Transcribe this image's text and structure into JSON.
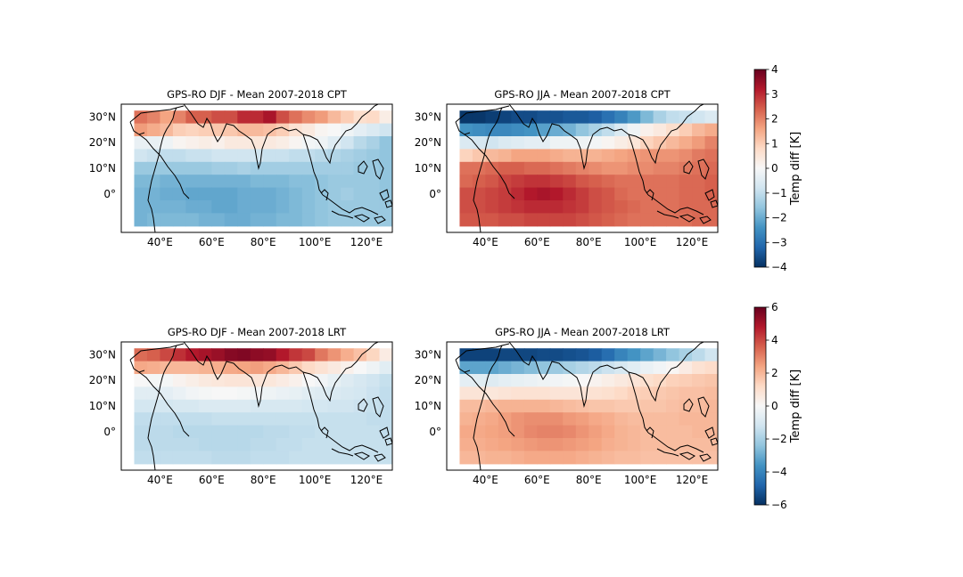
{
  "chart_data": [
    {
      "type": "heatmap",
      "title": "GPS-RO DJF - Mean 2007-2018 CPT",
      "x_ticks": [
        "40°E",
        "60°E",
        "80°E",
        "100°E",
        "120°E"
      ],
      "y_ticks": [
        "30°N",
        "20°N",
        "10°N",
        "0°"
      ],
      "x_range_deg_e": [
        25,
        130
      ],
      "y_range_deg_n": [
        -15,
        35
      ],
      "grid": {
        "lon_start": 30,
        "lon_step": 5,
        "lat_rows_north_to_south": [
          30,
          25,
          20,
          15,
          10,
          5,
          0,
          -5,
          -10
        ],
        "lat_step": 5
      },
      "colorbar": "shared-cpt",
      "values": [
        [
          2.2,
          2.0,
          1.6,
          2.0,
          2.4,
          2.4,
          2.6,
          2.6,
          3.0,
          3.0,
          3.3,
          2.6,
          2.2,
          1.9,
          1.7,
          1.3,
          1.0,
          0.7,
          0.8,
          0.3
        ],
        [
          1.7,
          1.5,
          1.3,
          1.0,
          0.9,
          1.0,
          1.1,
          1.1,
          1.3,
          1.3,
          1.2,
          1.0,
          0.6,
          0.4,
          0.1,
          0.0,
          -0.2,
          -0.4,
          -0.6,
          -0.8
        ],
        [
          -0.3,
          -0.3,
          -0.2,
          0.1,
          0.2,
          0.3,
          0.2,
          0.4,
          0.4,
          0.5,
          0.4,
          0.3,
          0.1,
          -0.1,
          -0.2,
          -0.5,
          -0.8,
          -1.1,
          -1.3,
          -1.6
        ],
        [
          -0.8,
          -0.9,
          -1.0,
          -1.0,
          -0.9,
          -0.9,
          -0.8,
          -0.8,
          -0.8,
          -0.8,
          -0.9,
          -0.9,
          -1.0,
          -1.0,
          -1.1,
          -1.2,
          -1.3,
          -1.4,
          -1.5,
          -1.6
        ],
        [
          -1.5,
          -1.5,
          -1.5,
          -1.5,
          -1.5,
          -1.5,
          -1.4,
          -1.4,
          -1.3,
          -1.4,
          -1.4,
          -1.4,
          -1.4,
          -1.4,
          -1.4,
          -1.4,
          -1.4,
          -1.5,
          -1.5,
          -1.6
        ],
        [
          -1.8,
          -1.8,
          -1.9,
          -1.9,
          -1.9,
          -1.9,
          -1.9,
          -1.9,
          -1.9,
          -1.8,
          -1.8,
          -1.8,
          -1.7,
          -1.7,
          -1.6,
          -1.5,
          -1.5,
          -1.5,
          -1.5,
          -1.6
        ],
        [
          -1.9,
          -1.9,
          -2.0,
          -2.0,
          -2.1,
          -2.1,
          -2.1,
          -2.1,
          -2.0,
          -2.0,
          -2.0,
          -1.9,
          -1.8,
          -1.7,
          -1.6,
          -1.5,
          -1.4,
          -1.5,
          -1.5,
          -1.6
        ],
        [
          -1.9,
          -1.9,
          -1.9,
          -1.9,
          -2.0,
          -2.0,
          -2.1,
          -2.1,
          -2.0,
          -2.0,
          -2.0,
          -1.9,
          -1.8,
          -1.7,
          -1.6,
          -1.5,
          -1.5,
          -1.5,
          -1.5,
          -1.5
        ],
        [
          -1.9,
          -1.8,
          -1.8,
          -1.8,
          -1.8,
          -1.9,
          -1.9,
          -2.0,
          -2.0,
          -1.9,
          -1.9,
          -1.8,
          -1.8,
          -1.7,
          -1.6,
          -1.5,
          -1.5,
          -1.5,
          -1.5,
          -1.5
        ]
      ]
    },
    {
      "type": "heatmap",
      "title": "GPS-RO JJA - Mean 2007-2018 CPT",
      "x_ticks": [
        "40°E",
        "60°E",
        "80°E",
        "100°E",
        "120°E"
      ],
      "y_ticks": [
        "30°N",
        "20°N",
        "10°N",
        "0°"
      ],
      "x_range_deg_e": [
        25,
        130
      ],
      "y_range_deg_n": [
        -15,
        35
      ],
      "grid": {
        "lon_start": 30,
        "lon_step": 5,
        "lat_rows_north_to_south": [
          30,
          25,
          20,
          15,
          10,
          5,
          0,
          -5,
          -10
        ],
        "lat_step": 5
      },
      "colorbar": "shared-cpt",
      "values": [
        [
          -3.9,
          -3.9,
          -3.8,
          -3.7,
          -3.6,
          -3.6,
          -3.5,
          -3.5,
          -3.4,
          -3.4,
          -3.3,
          -3.0,
          -2.7,
          -2.3,
          -1.8,
          -1.3,
          -1.0,
          -0.9,
          -0.8,
          -0.6
        ],
        [
          -2.4,
          -2.5,
          -2.6,
          -2.6,
          -2.5,
          -2.4,
          -2.2,
          -2.0,
          -1.9,
          -1.6,
          -1.3,
          -1.0,
          -0.6,
          -0.2,
          0.2,
          0.4,
          0.7,
          1.0,
          1.3,
          1.5
        ],
        [
          -0.6,
          -0.7,
          -0.8,
          -0.6,
          -0.5,
          -0.4,
          -0.4,
          -0.2,
          -0.2,
          -0.2,
          -0.1,
          0.1,
          0.3,
          0.5,
          0.9,
          1.1,
          1.3,
          1.5,
          1.7,
          2.0
        ],
        [
          0.9,
          1.1,
          1.3,
          1.4,
          1.6,
          1.6,
          1.6,
          1.5,
          1.4,
          1.4,
          1.4,
          1.5,
          1.6,
          1.7,
          1.8,
          1.8,
          1.8,
          1.9,
          2.1,
          2.2
        ],
        [
          2.2,
          2.2,
          2.3,
          2.4,
          2.4,
          2.3,
          2.3,
          2.2,
          2.1,
          2.0,
          1.9,
          1.8,
          1.8,
          1.9,
          1.9,
          2.0,
          2.0,
          2.1,
          2.2,
          2.3
        ],
        [
          2.3,
          2.4,
          2.5,
          2.7,
          2.8,
          2.9,
          2.9,
          2.8,
          2.7,
          2.5,
          2.4,
          2.3,
          2.2,
          2.2,
          2.2,
          2.2,
          2.2,
          2.3,
          2.3,
          2.4
        ],
        [
          2.6,
          2.6,
          2.7,
          2.8,
          3.0,
          3.2,
          3.3,
          3.2,
          3.0,
          2.8,
          2.6,
          2.5,
          2.3,
          2.2,
          2.2,
          2.2,
          2.2,
          2.3,
          2.3,
          2.4
        ],
        [
          2.6,
          2.6,
          2.7,
          2.8,
          2.9,
          3.0,
          3.0,
          3.0,
          2.9,
          2.8,
          2.6,
          2.5,
          2.4,
          2.3,
          2.2,
          2.2,
          2.2,
          2.3,
          2.3,
          2.3
        ],
        [
          2.5,
          2.5,
          2.5,
          2.6,
          2.6,
          2.7,
          2.7,
          2.7,
          2.7,
          2.6,
          2.5,
          2.4,
          2.3,
          2.2,
          2.2,
          2.2,
          2.2,
          2.2,
          2.3,
          2.3
        ]
      ]
    },
    {
      "type": "heatmap",
      "title": "GPS-RO DJF - Mean 2007-2018 LRT",
      "x_ticks": [
        "40°E",
        "60°E",
        "80°E",
        "100°E",
        "120°E"
      ],
      "y_ticks": [
        "30°N",
        "20°N",
        "10°N",
        "0°"
      ],
      "x_range_deg_e": [
        25,
        130
      ],
      "y_range_deg_n": [
        -15,
        35
      ],
      "grid": {
        "lon_start": 30,
        "lon_step": 5,
        "lat_rows_north_to_south": [
          30,
          25,
          20,
          15,
          10,
          5,
          0,
          -5,
          -10
        ],
        "lat_step": 5
      },
      "colorbar": "shared-lrt",
      "values": [
        [
          3.4,
          3.6,
          4.0,
          4.4,
          4.8,
          5.0,
          5.2,
          5.5,
          5.6,
          5.4,
          5.3,
          4.8,
          4.3,
          4.0,
          3.2,
          2.7,
          2.2,
          1.8,
          1.3,
          0.5
        ],
        [
          2.3,
          2.2,
          2.0,
          2.0,
          2.0,
          2.1,
          2.2,
          2.3,
          2.4,
          2.5,
          2.3,
          2.0,
          1.6,
          1.2,
          0.9,
          0.6,
          0.3,
          0.0,
          -0.3,
          -0.7
        ],
        [
          0.0,
          -0.1,
          -0.1,
          0.2,
          0.4,
          0.6,
          0.7,
          0.8,
          0.8,
          0.8,
          0.7,
          0.5,
          0.3,
          0.0,
          -0.2,
          -0.5,
          -0.8,
          -1.0,
          -1.2,
          -1.4
        ],
        [
          -0.7,
          -0.7,
          -0.6,
          -0.4,
          -0.2,
          -0.1,
          0.0,
          0.0,
          -0.1,
          -0.2,
          -0.3,
          -0.4,
          -0.5,
          -0.7,
          -0.8,
          -0.9,
          -1.0,
          -1.1,
          -1.3,
          -1.5
        ],
        [
          -1.1,
          -1.1,
          -1.1,
          -1.0,
          -1.0,
          -0.9,
          -0.9,
          -0.9,
          -0.9,
          -1.0,
          -1.0,
          -1.0,
          -1.0,
          -1.1,
          -1.1,
          -1.2,
          -1.2,
          -1.3,
          -1.4,
          -1.5
        ],
        [
          -1.5,
          -1.5,
          -1.5,
          -1.5,
          -1.5,
          -1.5,
          -1.4,
          -1.4,
          -1.4,
          -1.4,
          -1.4,
          -1.4,
          -1.4,
          -1.4,
          -1.4,
          -1.4,
          -1.4,
          -1.4,
          -1.5,
          -1.5
        ],
        [
          -1.6,
          -1.6,
          -1.6,
          -1.7,
          -1.7,
          -1.7,
          -1.7,
          -1.7,
          -1.7,
          -1.7,
          -1.6,
          -1.6,
          -1.5,
          -1.5,
          -1.4,
          -1.4,
          -1.4,
          -1.4,
          -1.4,
          -1.5
        ],
        [
          -1.6,
          -1.6,
          -1.6,
          -1.6,
          -1.6,
          -1.7,
          -1.7,
          -1.7,
          -1.7,
          -1.6,
          -1.6,
          -1.5,
          -1.5,
          -1.4,
          -1.4,
          -1.4,
          -1.4,
          -1.4,
          -1.4,
          -1.4
        ],
        [
          -1.5,
          -1.5,
          -1.5,
          -1.5,
          -1.5,
          -1.5,
          -1.6,
          -1.6,
          -1.6,
          -1.5,
          -1.5,
          -1.5,
          -1.4,
          -1.4,
          -1.4,
          -1.4,
          -1.4,
          -1.4,
          -1.4,
          -1.4
        ]
      ]
    },
    {
      "type": "heatmap",
      "title": "GPS-RO JJA - Mean 2007-2018 LRT",
      "x_ticks": [
        "40°E",
        "60°E",
        "80°E",
        "100°E",
        "120°E"
      ],
      "y_ticks": [
        "30°N",
        "20°N",
        "10°N",
        "0°"
      ],
      "x_range_deg_e": [
        25,
        130
      ],
      "y_range_deg_n": [
        -15,
        35
      ],
      "grid": {
        "lon_start": 30,
        "lon_step": 5,
        "lat_rows_north_to_south": [
          30,
          25,
          20,
          15,
          10,
          5,
          0,
          -5,
          -10
        ],
        "lat_step": 5
      },
      "colorbar": "shared-lrt",
      "values": [
        [
          -5.6,
          -5.6,
          -5.6,
          -5.5,
          -5.5,
          -5.5,
          -5.4,
          -5.4,
          -5.3,
          -5.2,
          -5.0,
          -4.6,
          -4.0,
          -3.6,
          -3.2,
          -2.8,
          -2.4,
          -2.0,
          -1.6,
          -1.2
        ],
        [
          -3.2,
          -3.2,
          -3.2,
          -3.0,
          -2.8,
          -2.6,
          -2.4,
          -2.2,
          -2.0,
          -1.8,
          -1.6,
          -1.3,
          -1.0,
          -0.7,
          -0.4,
          -0.2,
          0.1,
          0.5,
          0.9,
          1.1
        ],
        [
          -0.6,
          -0.7,
          -0.8,
          -0.6,
          -0.5,
          -0.4,
          -0.3,
          -0.2,
          -0.1,
          0.0,
          0.2,
          0.4,
          0.6,
          0.8,
          1.0,
          1.2,
          1.4,
          1.5,
          1.6,
          1.7
        ],
        [
          0.8,
          0.8,
          0.7,
          0.8,
          0.9,
          0.9,
          0.9,
          0.8,
          0.8,
          0.8,
          0.9,
          1.0,
          1.2,
          1.4,
          1.5,
          1.6,
          1.7,
          1.8,
          1.8,
          1.9
        ],
        [
          1.9,
          1.9,
          2.0,
          2.1,
          2.1,
          2.1,
          2.1,
          2.0,
          1.9,
          1.8,
          1.7,
          1.7,
          1.6,
          1.6,
          1.7,
          1.7,
          1.8,
          1.9,
          1.9,
          2.0
        ],
        [
          2.1,
          2.2,
          2.3,
          2.5,
          2.7,
          2.8,
          2.8,
          2.8,
          2.6,
          2.5,
          2.3,
          2.2,
          2.0,
          1.9,
          1.9,
          1.9,
          1.9,
          2.0,
          2.0,
          2.0
        ],
        [
          2.3,
          2.3,
          2.4,
          2.5,
          2.7,
          2.9,
          3.0,
          3.0,
          2.9,
          2.7,
          2.5,
          2.3,
          2.1,
          2.0,
          1.9,
          1.9,
          1.9,
          1.9,
          2.0,
          2.0
        ],
        [
          2.2,
          2.2,
          2.3,
          2.4,
          2.5,
          2.6,
          2.7,
          2.7,
          2.6,
          2.5,
          2.4,
          2.2,
          2.1,
          2.0,
          1.9,
          1.9,
          1.9,
          1.9,
          1.9,
          1.9
        ],
        [
          2.0,
          2.0,
          2.1,
          2.1,
          2.2,
          2.3,
          2.3,
          2.3,
          2.3,
          2.2,
          2.1,
          2.0,
          1.9,
          1.9,
          1.8,
          1.8,
          1.8,
          1.8,
          1.8,
          1.8
        ]
      ]
    }
  ],
  "colorbars": [
    {
      "id": "shared-cpt",
      "label": "Temp diff [K]",
      "range": [
        -4,
        4
      ],
      "ticks": [
        "4",
        "3",
        "2",
        "1",
        "0",
        "−1",
        "−2",
        "−3",
        "−4"
      ],
      "colormap": "RdBu_r"
    },
    {
      "id": "shared-lrt",
      "label": "Temp diff [K]",
      "range": [
        -6,
        6
      ],
      "ticks": [
        "6",
        "4",
        "2",
        "0",
        "−2",
        "−4",
        "−6"
      ],
      "colormap": "RdBu_r"
    }
  ],
  "colors": {
    "coastline": "#000000",
    "colormap_stops": [
      "#053061",
      "#2166ac",
      "#4393c3",
      "#92c5de",
      "#d1e5f0",
      "#f7f7f7",
      "#fddbc7",
      "#f4a582",
      "#d6604d",
      "#b2182b",
      "#67001f"
    ]
  }
}
